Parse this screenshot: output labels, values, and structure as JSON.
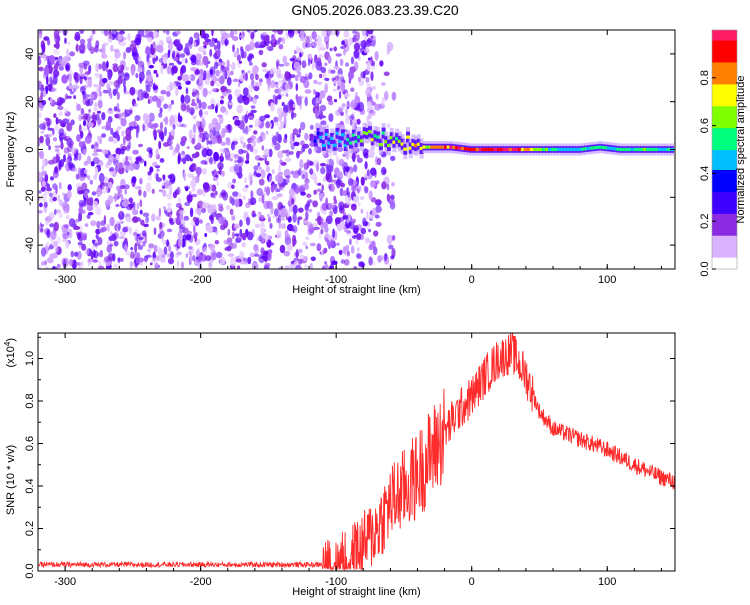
{
  "figure": {
    "title": "GN05.2026.083.23.39.C20"
  },
  "chart_data": [
    {
      "type": "heatmap",
      "xlabel": "Height of straight line (km)",
      "ylabel": "Frequency (Hz)",
      "xlim": [
        -320,
        150
      ],
      "ylim": [
        -50,
        50
      ],
      "xticks": [
        -300,
        -200,
        -100,
        0,
        100
      ],
      "yticks": [
        -40,
        -20,
        0,
        20,
        40
      ],
      "xtick_labels": [
        "-300",
        "-200",
        "-100",
        "0",
        "100"
      ],
      "ytick_labels": [
        "-40",
        "-20",
        "0",
        "20",
        "40"
      ],
      "colorbar": {
        "label": "Normalized spectral amplitude",
        "range": [
          0,
          1
        ],
        "ticks": [
          0.0,
          0.2,
          0.4,
          0.6,
          0.8
        ],
        "tick_labels": [
          "0.0",
          "0.2",
          "0.4",
          "0.6",
          "0.8"
        ],
        "colormap": [
          "#ffffff",
          "#d9b3ff",
          "#8a2be2",
          "#3f00ff",
          "#0000ff",
          "#00bfff",
          "#00ff7f",
          "#7fff00",
          "#ffff00",
          "#ff7f00",
          "#ff0000",
          "#ff1a66"
        ]
      },
      "noise_region_x": [
        -320,
        -72
      ],
      "noise_region_y": [
        -50,
        50
      ],
      "ridge": [
        {
          "x": -115,
          "freq": 4,
          "amp": 0.35
        },
        {
          "x": -105,
          "freq": 5,
          "amp": 0.45
        },
        {
          "x": -95,
          "freq": 4,
          "amp": 0.5
        },
        {
          "x": -85,
          "freq": 5,
          "amp": 0.55
        },
        {
          "x": -75,
          "freq": 5,
          "amp": 0.6
        },
        {
          "x": -65,
          "freq": 4,
          "amp": 0.6
        },
        {
          "x": -55,
          "freq": 3,
          "amp": 0.65
        },
        {
          "x": -45,
          "freq": 2,
          "amp": 0.7
        },
        {
          "x": -35,
          "freq": 1,
          "amp": 0.75
        },
        {
          "x": -25,
          "freq": 1,
          "amp": 0.8
        },
        {
          "x": -15,
          "freq": 1,
          "amp": 0.85
        },
        {
          "x": 0,
          "freq": 0,
          "amp": 0.95
        },
        {
          "x": 20,
          "freq": 0,
          "amp": 1.0
        },
        {
          "x": 40,
          "freq": 0,
          "amp": 0.85
        },
        {
          "x": 60,
          "freq": 0,
          "amp": 0.5
        },
        {
          "x": 80,
          "freq": 0,
          "amp": 0.45
        },
        {
          "x": 95,
          "freq": 1,
          "amp": 0.6
        },
        {
          "x": 110,
          "freq": 0,
          "amp": 0.5
        },
        {
          "x": 130,
          "freq": 0,
          "amp": 0.55
        },
        {
          "x": 150,
          "freq": 0,
          "amp": 0.45
        }
      ]
    },
    {
      "type": "line",
      "xlabel": "Height of straight line (km)",
      "ylabel": "SNR (10 * v/v)",
      "y_scale_label": "(x10",
      "y_scale_exponent": "4",
      "y_scale_close": ")",
      "xlim": [
        -320,
        150
      ],
      "ylim": [
        0.0,
        1.12
      ],
      "xticks": [
        -300,
        -200,
        -100,
        0,
        100
      ],
      "yticks": [
        0.0,
        0.2,
        0.4,
        0.6,
        0.8,
        1.0
      ],
      "xtick_labels": [
        "-300",
        "-200",
        "-100",
        "0",
        "100"
      ],
      "ytick_labels": [
        "0.0",
        "0.2",
        "0.4",
        "0.6",
        "0.8",
        "1.0"
      ],
      "color": "#ff2a2a",
      "series": [
        {
          "x": [
            -320,
            -300,
            -250,
            -200,
            -150,
            -110,
            -100,
            -90,
            -80,
            -70,
            -60,
            -50,
            -40,
            -30,
            -20,
            -10,
            0,
            10,
            20,
            30,
            40,
            50,
            60,
            80,
            100,
            120,
            140,
            150
          ],
          "values": [
            0.03,
            0.03,
            0.03,
            0.03,
            0.03,
            0.03,
            0.04,
            0.07,
            0.12,
            0.2,
            0.32,
            0.38,
            0.45,
            0.55,
            0.65,
            0.75,
            0.82,
            0.92,
            1.0,
            1.03,
            0.92,
            0.75,
            0.67,
            0.62,
            0.57,
            0.5,
            0.44,
            0.42
          ]
        }
      ]
    }
  ]
}
